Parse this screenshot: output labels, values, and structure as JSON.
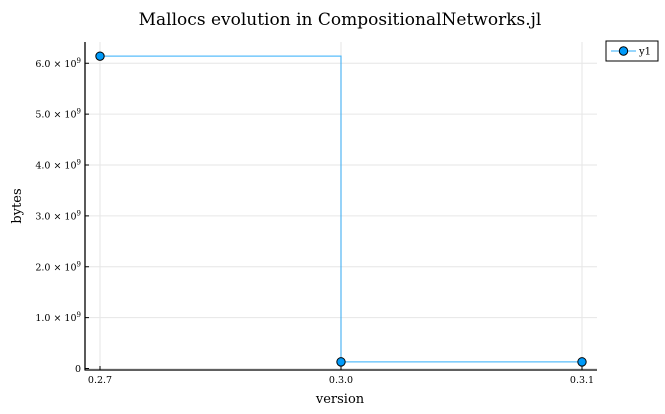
{
  "chart_data": {
    "type": "line",
    "step": "post",
    "title": "Mallocs evolution in CompositionalNetworks.jl",
    "xlabel": "version",
    "ylabel": "bytes",
    "categories": [
      "0.2.7",
      "0.3.0",
      "0.3.1"
    ],
    "series": [
      {
        "name": "y1",
        "color": "#009af9",
        "values": [
          6140000000,
          130000000,
          130000000
        ]
      }
    ],
    "ylim": [
      0,
      6300000000
    ],
    "yticks": [
      {
        "value": 0,
        "mantissa": "0",
        "exponent": ""
      },
      {
        "value": 1000000000,
        "mantissa": "1.0",
        "exponent": "9"
      },
      {
        "value": 2000000000,
        "mantissa": "2.0",
        "exponent": "9"
      },
      {
        "value": 3000000000,
        "mantissa": "3.0",
        "exponent": "9"
      },
      {
        "value": 4000000000,
        "mantissa": "4.0",
        "exponent": "9"
      },
      {
        "value": 5000000000,
        "mantissa": "5.0",
        "exponent": "9"
      },
      {
        "value": 6000000000,
        "mantissa": "6.0",
        "exponent": "9"
      }
    ],
    "grid": true,
    "legend_position": "top-right"
  }
}
